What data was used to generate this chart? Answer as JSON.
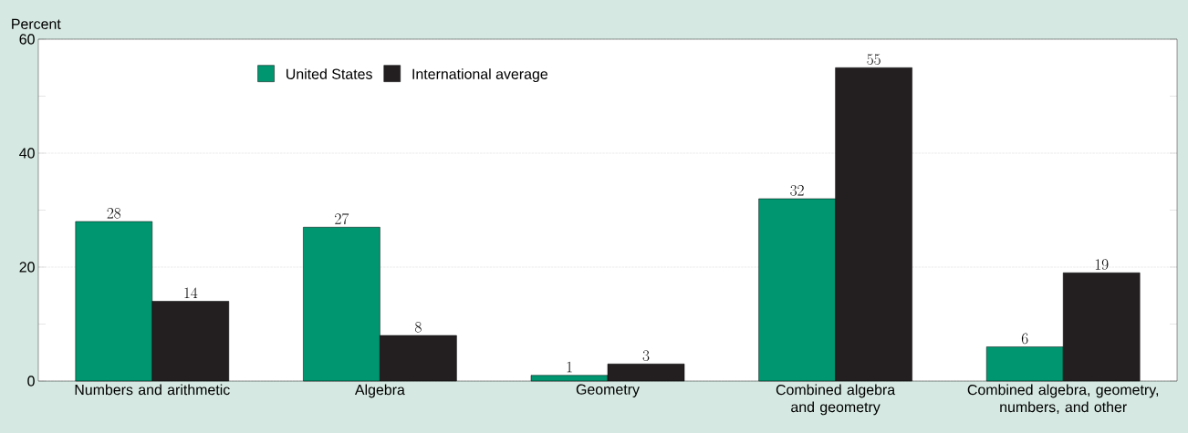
{
  "chart_data": {
    "type": "bar",
    "ylabel": "Percent",
    "categories": [
      "Numbers and arithmetic",
      "Algebra",
      "Geometry",
      "Combined algebra and geometry",
      "Combined algebra, geometry, numbers, and other"
    ],
    "series": [
      {
        "name": "United States",
        "color": "#009670",
        "values": [
          28,
          27,
          1,
          32,
          6
        ]
      },
      {
        "name": "International average",
        "color": "#231f20",
        "values": [
          14,
          8,
          3,
          55,
          19
        ]
      }
    ],
    "ylim": [
      0,
      60
    ],
    "yticks": [
      0,
      {
        "value": 10,
        "label": null
      },
      20,
      {
        "value": 30,
        "label": null
      },
      40,
      {
        "value": 50,
        "label": null
      },
      60
    ],
    "grid": "y",
    "legend": "top left",
    "data_labels": true
  }
}
